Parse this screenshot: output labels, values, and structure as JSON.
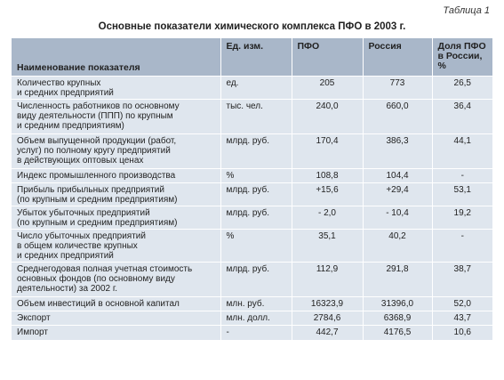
{
  "caption": "Таблица 1",
  "title": "Основные показатели химического комплекса ПФО в 2003 г.",
  "columns": [
    "Наименование показателя",
    "Ед. изм.",
    "ПФО",
    "Россия",
    "Доля ПФО в России, %"
  ],
  "rows": [
    [
      "Количество крупных\nи средних предприятий",
      "ед.",
      "205",
      "773",
      "26,5"
    ],
    [
      "Численность работников по основному\nвиду деятельности (ППП) по крупным\nи средним предприятиям)",
      "тыс. чел.",
      "240,0",
      "660,0",
      "36,4"
    ],
    [
      "Объем выпущенной продукции (работ,\nуслуг) по полному кругу предприятий\nв действующих оптовых ценах",
      "млрд. руб.",
      "170,4",
      "386,3",
      "44,1"
    ],
    [
      "Индекс промышленного производства",
      "%",
      "108,8",
      "104,4",
      "-"
    ],
    [
      "Прибыль прибыльных предприятий\n(по крупным и средним предприятиям)",
      "млрд. руб.",
      "+15,6",
      "+29,4",
      "53,1"
    ],
    [
      "Убыток убыточных предприятий\n(по крупным и средним предприятиям)",
      "млрд. руб.",
      "- 2,0",
      "- 10,4",
      "19,2"
    ],
    [
      "Число убыточных предприятий\nв общем количестве крупных\nи средних предприятий",
      "%",
      "35,1",
      "40,2",
      "-"
    ],
    [
      "Среднегодовая полная учетная стоимость\nосновных фондов (по основному виду\nдеятельности) за 2002 г.",
      "млрд. руб.",
      "112,9",
      "291,8",
      "38,7"
    ],
    [
      "Объем инвестиций в основной капитал",
      "млн. руб.",
      "16323,9",
      "31396,0",
      "52,0"
    ],
    [
      "Экспорт",
      "млн. долл.",
      "2784,6",
      "6368,9",
      "43,7"
    ],
    [
      "Импорт",
      "-",
      "442,7",
      "4176,5",
      "10,6"
    ]
  ]
}
